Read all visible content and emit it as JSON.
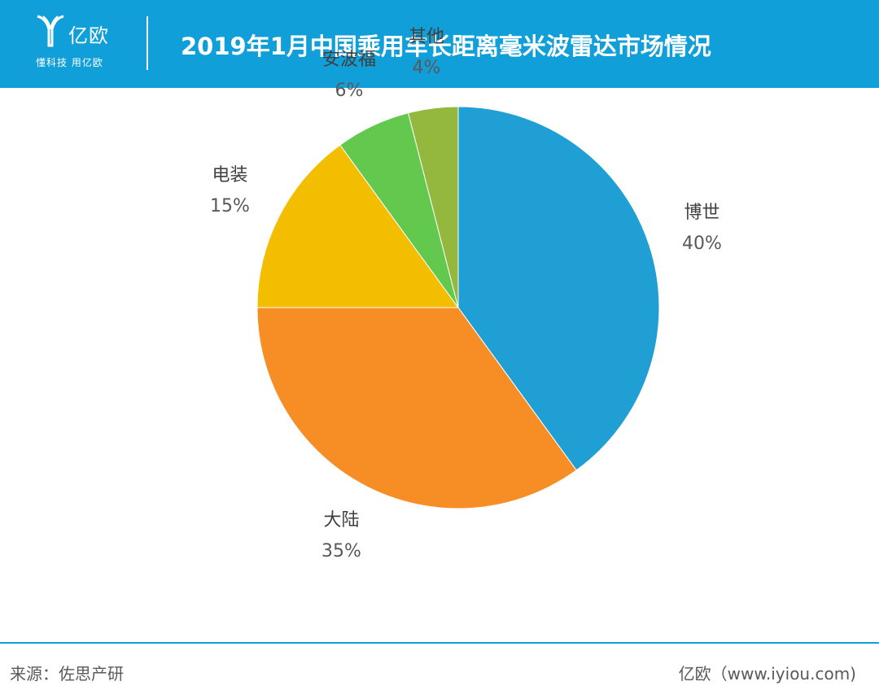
{
  "header": {
    "logo_name": "亿欧",
    "logo_slogan": "懂科技 用亿欧",
    "title": "2019年1月中国乘用车长距离毫米波雷达市场情况"
  },
  "chart_data": {
    "type": "pie",
    "title": "2019年1月中国乘用车长距离毫米波雷达市场情况",
    "slices": [
      {
        "name": "博世",
        "value": 40,
        "label": "40%",
        "color": "#1f9fd4"
      },
      {
        "name": "大陆",
        "value": 35,
        "label": "35%",
        "color": "#f68d25"
      },
      {
        "name": "电装",
        "value": 15,
        "label": "15%",
        "color": "#f3bd00"
      },
      {
        "name": "安波福",
        "value": 6,
        "label": "6%",
        "color": "#62c84e"
      },
      {
        "name": "其他",
        "value": 4,
        "label": "4%",
        "color": "#93b83d"
      }
    ]
  },
  "footer": {
    "source": "来源：佐思产研",
    "site": "亿欧（www.iyiou.com)"
  }
}
